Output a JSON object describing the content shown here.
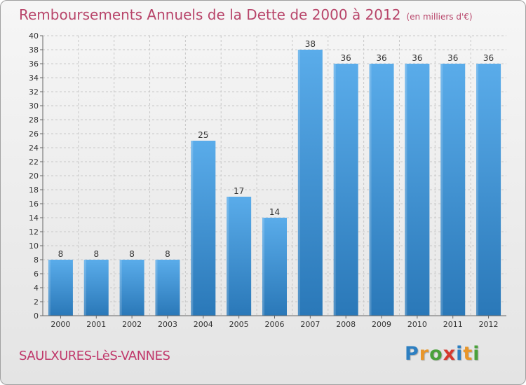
{
  "title": "Remboursements Annuels de la Dette de 2000 à 2012",
  "unit_note": "(en milliers d'€)",
  "commune": "SAULXURES-LèS-VANNES",
  "logo": {
    "text": "Proxiti",
    "colors": [
      "#2d7fc1",
      "#e8962a",
      "#4aa13b",
      "#d6392e",
      "#2d7fc1",
      "#e8962a",
      "#4aa13b"
    ]
  },
  "colors": {
    "bar_light": "#5aacea",
    "bar_dark": "#2a78b8",
    "title": "#b8456a"
  },
  "chart_data": {
    "type": "bar",
    "categories": [
      "2000",
      "2001",
      "2002",
      "2003",
      "2004",
      "2005",
      "2006",
      "2007",
      "2008",
      "2009",
      "2010",
      "2011",
      "2012"
    ],
    "values": [
      8,
      8,
      8,
      8,
      25,
      17,
      14,
      38,
      36,
      36,
      36,
      36,
      36
    ],
    "title": "Remboursements Annuels de la Dette de 2000 à 2012",
    "xlabel": "",
    "ylabel": "",
    "ylim": [
      0,
      40
    ],
    "ytick_step": 2,
    "grid": true
  }
}
